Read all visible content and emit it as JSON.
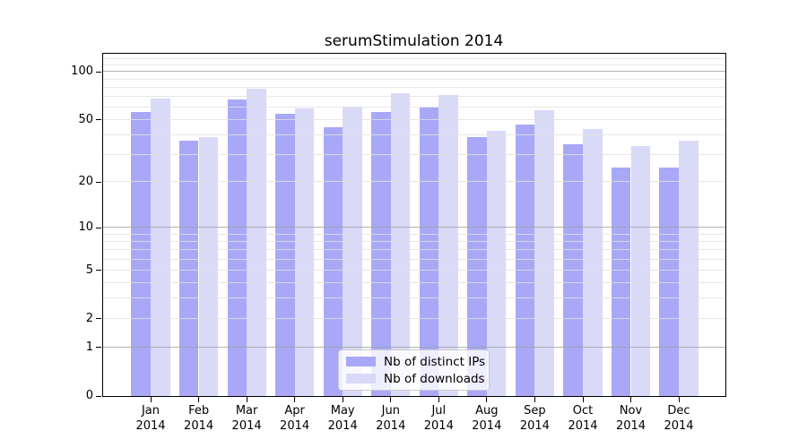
{
  "title": "serumStimulation 2014",
  "legend": {
    "items": [
      {
        "label": "Nb of distinct IPs",
        "key": "ips"
      },
      {
        "label": "Nb of downloads",
        "key": "downloads"
      }
    ]
  },
  "colors": {
    "ips_bar": "#a8a8f7",
    "downloads_bar": "#d9d9f8",
    "grid_minor": "rgba(225,225,225,0.8)",
    "grid_major": "rgba(160,160,160,0.8)",
    "axis": "#000000",
    "background": "#ffffff",
    "legend_border": "#cccccc"
  },
  "y_axis": {
    "tick_labels": [
      "100",
      "50",
      "20",
      "10",
      "5",
      "2",
      "1",
      "0"
    ]
  },
  "x_axis": {
    "months": [
      "Jan",
      "Feb",
      "Mar",
      "Apr",
      "May",
      "Jun",
      "Jul",
      "Aug",
      "Sep",
      "Oct",
      "Nov",
      "Dec"
    ],
    "year": "2014"
  },
  "chart_data": {
    "type": "bar",
    "title": "serumStimulation 2014",
    "categories": [
      "Jan 2014",
      "Feb 2014",
      "Mar 2014",
      "Apr 2014",
      "May 2014",
      "Jun 2014",
      "Jul 2014",
      "Aug 2014",
      "Sep 2014",
      "Oct 2014",
      "Nov 2014",
      "Dec 2014"
    ],
    "series": [
      {
        "name": "Nb of distinct IPs",
        "color": "#a8a8f7",
        "values": [
          56,
          37,
          67,
          55,
          45,
          56,
          60,
          39,
          47,
          35,
          25,
          25
        ]
      },
      {
        "name": "Nb of downloads",
        "color": "#d9d9f8",
        "values": [
          68,
          39,
          79,
          59,
          61,
          74,
          72,
          43,
          58,
          44,
          34,
          37
        ]
      }
    ],
    "xlabel": "",
    "ylabel": "",
    "yscale": "log1p",
    "ylim": [
      0,
      130
    ],
    "yticks": [
      100,
      50,
      20,
      10,
      5,
      2,
      1,
      0
    ],
    "grid": true,
    "grid_minor_values": [
      2,
      3,
      4,
      5,
      6,
      7,
      8,
      9,
      20,
      30,
      40,
      50,
      60,
      70,
      80,
      90,
      110,
      120
    ],
    "grid_major_values": [
      1,
      10,
      100
    ],
    "legend_position": "lower center"
  }
}
